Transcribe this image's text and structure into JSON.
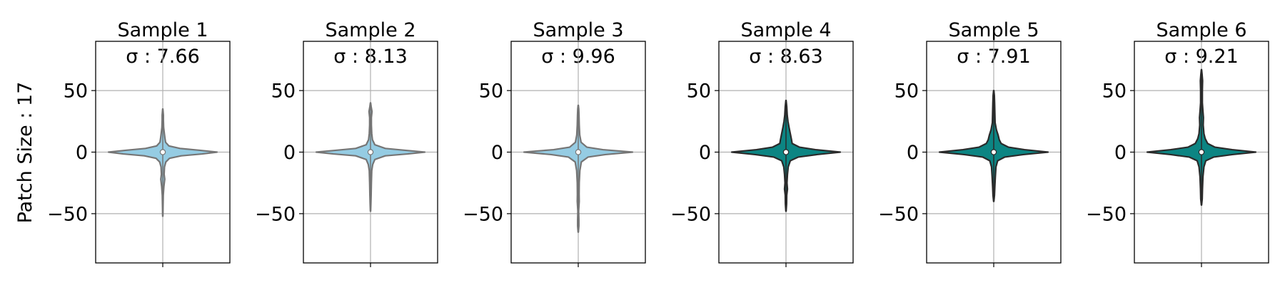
{
  "figure": {
    "ylabel": "Patch Size : 17"
  },
  "colors": {
    "light_fill": "#95cce3",
    "light_edge": "#757575",
    "dark_fill": "#0c8583",
    "dark_edge": "#2a2a2a",
    "grid": "#b0b0b0",
    "frame": "#000000"
  },
  "chart_data": [
    {
      "type": "violin",
      "title": "Sample 1",
      "subtitle": "σ : 7.66",
      "ylim": [
        -90,
        90
      ],
      "yticks": [
        50,
        0,
        -50
      ],
      "ytick_labels": [
        "50",
        "0",
        "−50"
      ],
      "grid": true,
      "median": 0,
      "min": -52,
      "max": 35,
      "fill": "light",
      "profile": [
        [
          -52,
          0.1
        ],
        [
          -45,
          0.2
        ],
        [
          -35,
          0.4
        ],
        [
          -28,
          0.9
        ],
        [
          -22,
          1.6
        ],
        [
          -18,
          1.1
        ],
        [
          -12,
          1.4
        ],
        [
          -8,
          2.5
        ],
        [
          -5,
          5.5
        ],
        [
          -3,
          15
        ],
        [
          -1.5,
          32
        ],
        [
          0,
          44
        ],
        [
          1.5,
          30
        ],
        [
          3,
          14
        ],
        [
          5,
          5
        ],
        [
          8,
          2.3
        ],
        [
          11,
          1.8
        ],
        [
          15,
          1.3
        ],
        [
          20,
          0.7
        ],
        [
          26,
          0.5
        ],
        [
          30,
          0.5
        ],
        [
          35,
          0.1
        ]
      ]
    },
    {
      "type": "violin",
      "title": "Sample 2",
      "subtitle": "σ : 8.13",
      "ylim": [
        -90,
        90
      ],
      "yticks": [
        50,
        0,
        -50
      ],
      "ytick_labels": [
        "50",
        "0",
        "−50"
      ],
      "grid": true,
      "median": 0,
      "min": -48,
      "max": 40,
      "fill": "light",
      "profile": [
        [
          -48,
          0.1
        ],
        [
          -42,
          0.3
        ],
        [
          -35,
          0.5
        ],
        [
          -25,
          0.7
        ],
        [
          -15,
          1.0
        ],
        [
          -10,
          1.8
        ],
        [
          -6,
          3.5
        ],
        [
          -3,
          12
        ],
        [
          -1.5,
          30
        ],
        [
          0,
          44
        ],
        [
          1.5,
          28
        ],
        [
          3,
          12
        ],
        [
          6,
          3.5
        ],
        [
          10,
          1.6
        ],
        [
          15,
          1.0
        ],
        [
          22,
          0.7
        ],
        [
          28,
          0.7
        ],
        [
          33,
          1.2
        ],
        [
          37,
          0.5
        ],
        [
          40,
          0.1
        ]
      ]
    },
    {
      "type": "violin",
      "title": "Sample 3",
      "subtitle": "σ : 9.96",
      "ylim": [
        -90,
        90
      ],
      "yticks": [
        50,
        0,
        -50
      ],
      "ytick_labels": [
        "50",
        "0",
        "−50"
      ],
      "grid": true,
      "median": 0,
      "min": -65,
      "max": 38,
      "fill": "light",
      "profile": [
        [
          -65,
          0.1
        ],
        [
          -60,
          0.5
        ],
        [
          -55,
          0.5
        ],
        [
          -48,
          0.3
        ],
        [
          -40,
          0.8
        ],
        [
          -34,
          0.7
        ],
        [
          -25,
          0.8
        ],
        [
          -15,
          1.3
        ],
        [
          -8,
          2.5
        ],
        [
          -4,
          8
        ],
        [
          -2,
          22
        ],
        [
          0,
          44
        ],
        [
          2,
          20
        ],
        [
          4,
          7
        ],
        [
          8,
          2.3
        ],
        [
          14,
          1.2
        ],
        [
          22,
          0.8
        ],
        [
          30,
          0.6
        ],
        [
          35,
          0.4
        ],
        [
          38,
          0.1
        ]
      ]
    },
    {
      "type": "violin",
      "title": "Sample 4",
      "subtitle": "σ : 8.63",
      "ylim": [
        -90,
        90
      ],
      "yticks": [
        50,
        0,
        -50
      ],
      "ytick_labels": [
        "50",
        "0",
        "−50"
      ],
      "grid": true,
      "median": 0,
      "min": -48,
      "max": 42,
      "fill": "dark",
      "profile": [
        [
          -48,
          0.1
        ],
        [
          -42,
          0.5
        ],
        [
          -35,
          0.6
        ],
        [
          -30,
          1.2
        ],
        [
          -25,
          0.8
        ],
        [
          -18,
          1.2
        ],
        [
          -12,
          1.8
        ],
        [
          -7,
          3.5
        ],
        [
          -4,
          10
        ],
        [
          -2,
          25
        ],
        [
          0,
          44
        ],
        [
          2,
          24
        ],
        [
          4,
          11
        ],
        [
          7,
          5
        ],
        [
          10,
          4.5
        ],
        [
          15,
          3.5
        ],
        [
          20,
          2.5
        ],
        [
          25,
          1.6
        ],
        [
          30,
          1.0
        ],
        [
          37,
          0.6
        ],
        [
          42,
          0.1
        ]
      ]
    },
    {
      "type": "violin",
      "title": "Sample 5",
      "subtitle": "σ : 7.91",
      "ylim": [
        -90,
        90
      ],
      "yticks": [
        50,
        0,
        -50
      ],
      "ytick_labels": [
        "50",
        "0",
        "−50"
      ],
      "grid": true,
      "median": 0,
      "min": -40,
      "max": 50,
      "fill": "dark",
      "profile": [
        [
          -40,
          0.1
        ],
        [
          -35,
          0.6
        ],
        [
          -28,
          0.9
        ],
        [
          -20,
          1.3
        ],
        [
          -12,
          1.8
        ],
        [
          -7,
          3.2
        ],
        [
          -4,
          9
        ],
        [
          -2,
          24
        ],
        [
          0,
          44
        ],
        [
          2,
          25
        ],
        [
          4,
          12
        ],
        [
          7,
          6
        ],
        [
          10,
          4.5
        ],
        [
          14,
          3.5
        ],
        [
          18,
          2.2
        ],
        [
          24,
          1.1
        ],
        [
          32,
          0.9
        ],
        [
          40,
          0.7
        ],
        [
          46,
          0.5
        ],
        [
          50,
          0.1
        ]
      ]
    },
    {
      "type": "violin",
      "title": "Sample 6",
      "subtitle": "σ : 9.21",
      "ylim": [
        -90,
        90
      ],
      "yticks": [
        50,
        0,
        -50
      ],
      "ytick_labels": [
        "50",
        "0",
        "−50"
      ],
      "grid": true,
      "median": 0,
      "min": -43,
      "max": 67,
      "fill": "dark",
      "profile": [
        [
          -43,
          0.1
        ],
        [
          -38,
          0.6
        ],
        [
          -30,
          0.8
        ],
        [
          -20,
          1.2
        ],
        [
          -12,
          2.0
        ],
        [
          -7,
          3.5
        ],
        [
          -4,
          10
        ],
        [
          -2,
          25
        ],
        [
          0,
          44
        ],
        [
          2,
          25
        ],
        [
          4,
          11
        ],
        [
          7,
          5
        ],
        [
          11,
          3.0
        ],
        [
          15,
          2.0
        ],
        [
          22,
          1.4
        ],
        [
          28,
          1.6
        ],
        [
          33,
          1.2
        ],
        [
          40,
          0.7
        ],
        [
          50,
          0.7
        ],
        [
          58,
          0.9
        ],
        [
          63,
          0.5
        ],
        [
          67,
          0.1
        ]
      ]
    }
  ]
}
